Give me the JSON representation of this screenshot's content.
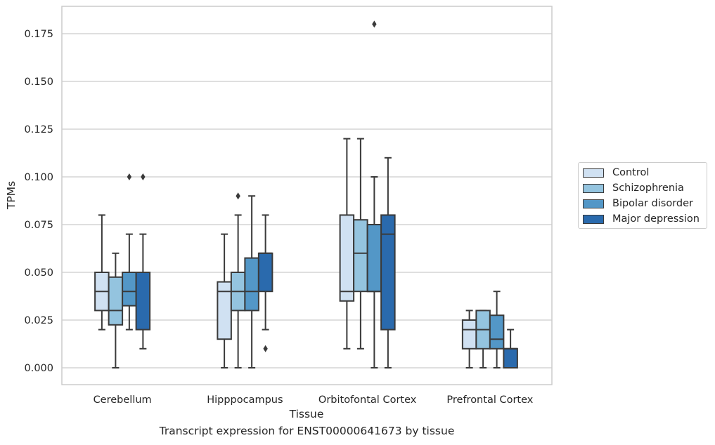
{
  "chart_data": {
    "type": "box",
    "xlabel": "Tissue",
    "ylabel": "TPMs",
    "caption": "Transcript expression for ENST00000641673 by tissue",
    "ylim": [
      -0.009,
      0.189
    ],
    "yticks": [
      "0.000",
      "0.025",
      "0.050",
      "0.075",
      "0.100",
      "0.125",
      "0.150",
      "0.175"
    ],
    "categories": [
      "Cerebellum",
      "Hipppocampus",
      "Orbitofontal Cortex",
      "Prefrontal Cortex"
    ],
    "legend_position": "right",
    "grid": "horizontal",
    "series": [
      {
        "name": "Control",
        "color": "#d0e1f2",
        "boxes": [
          {
            "min": 0.02,
            "q1": 0.03,
            "median": 0.04,
            "q3": 0.05,
            "max": 0.08,
            "outliers": []
          },
          {
            "min": 0.0,
            "q1": 0.015,
            "median": 0.04,
            "q3": 0.045,
            "max": 0.07,
            "outliers": []
          },
          {
            "min": 0.01,
            "q1": 0.035,
            "median": 0.04,
            "q3": 0.08,
            "max": 0.12,
            "outliers": []
          },
          {
            "min": 0.0,
            "q1": 0.01,
            "median": 0.02,
            "q3": 0.025,
            "max": 0.03,
            "outliers": []
          }
        ]
      },
      {
        "name": "Schizophrenia",
        "color": "#94c4df",
        "boxes": [
          {
            "min": 0.0,
            "q1": 0.0225,
            "median": 0.03,
            "q3": 0.0475,
            "max": 0.06,
            "outliers": []
          },
          {
            "min": 0.0,
            "q1": 0.03,
            "median": 0.04,
            "q3": 0.05,
            "max": 0.08,
            "outliers": [
              0.09
            ]
          },
          {
            "min": 0.01,
            "q1": 0.04,
            "median": 0.06,
            "q3": 0.0775,
            "max": 0.12,
            "outliers": []
          },
          {
            "min": 0.0,
            "q1": 0.01,
            "median": 0.02,
            "q3": 0.03,
            "max": 0.03,
            "outliers": []
          }
        ]
      },
      {
        "name": "Bipolar disorder",
        "color": "#5397c7",
        "boxes": [
          {
            "min": 0.02,
            "q1": 0.0325,
            "median": 0.04,
            "q3": 0.05,
            "max": 0.07,
            "outliers": [
              0.1
            ]
          },
          {
            "min": 0.0,
            "q1": 0.03,
            "median": 0.04,
            "q3": 0.0575,
            "max": 0.09,
            "outliers": []
          },
          {
            "min": 0.0,
            "q1": 0.04,
            "median": 0.04,
            "q3": 0.075,
            "max": 0.1,
            "outliers": [
              0.18
            ]
          },
          {
            "min": 0.0,
            "q1": 0.01,
            "median": 0.015,
            "q3": 0.0275,
            "max": 0.04,
            "outliers": []
          }
        ]
      },
      {
        "name": "Major depression",
        "color": "#2a6aad",
        "boxes": [
          {
            "min": 0.01,
            "q1": 0.02,
            "median": 0.05,
            "q3": 0.05,
            "max": 0.07,
            "outliers": [
              0.1
            ]
          },
          {
            "min": 0.02,
            "q1": 0.04,
            "median": 0.06,
            "q3": 0.06,
            "max": 0.08,
            "outliers": [
              0.01
            ]
          },
          {
            "min": 0.0,
            "q1": 0.02,
            "median": 0.07,
            "q3": 0.08,
            "max": 0.11,
            "outliers": []
          },
          {
            "min": 0.0,
            "q1": 0.0,
            "median": 0.01,
            "q3": 0.01,
            "max": 0.02,
            "outliers": []
          }
        ]
      }
    ]
  }
}
